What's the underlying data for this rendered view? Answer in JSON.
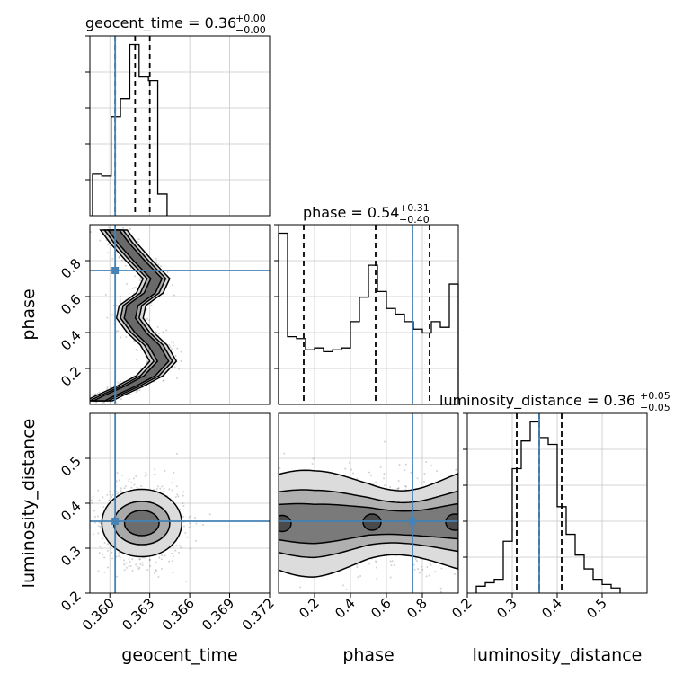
{
  "chart_data": {
    "type": "corner",
    "parameters": [
      "geocent_time",
      "phase",
      "luminosity_distance"
    ],
    "truths": {
      "geocent_time": 0.3604,
      "phase": 0.745,
      "luminosity_distance": 0.36
    },
    "truth_color": "#4682b4",
    "grid": true,
    "diagonal": [
      {
        "name": "geocent_time",
        "title": "geocent_time = 0.36",
        "title_upper": "+0.00",
        "title_lower": "−0.00",
        "quantiles": [
          0.3604,
          0.3619,
          0.363
        ],
        "xlim": [
          0.358,
          0.372
        ],
        "bins_x": [
          0.3587,
          0.3594,
          0.3601,
          0.3608,
          0.3615,
          0.3622,
          0.3629,
          0.3636,
          0.3643
        ],
        "counts": [
          0.23,
          0.22,
          0.55,
          0.65,
          0.95,
          0.77,
          0.75,
          0.12
        ]
      },
      {
        "name": "phase",
        "title": "phase = 0.54",
        "title_upper": "+0.31",
        "title_lower": "−0.40",
        "quantiles": [
          0.14,
          0.54,
          0.84
        ],
        "xlim": [
          0.0,
          1.0
        ],
        "bins_x": [
          0.0,
          0.05,
          0.1,
          0.15,
          0.2,
          0.25,
          0.3,
          0.35,
          0.4,
          0.45,
          0.5,
          0.55,
          0.6,
          0.65,
          0.7,
          0.75,
          0.8,
          0.85,
          0.9,
          0.95,
          1.0
        ],
        "counts": [
          0.91,
          0.36,
          0.35,
          0.29,
          0.3,
          0.28,
          0.29,
          0.3,
          0.44,
          0.57,
          0.74,
          0.6,
          0.51,
          0.48,
          0.44,
          0.4,
          0.38,
          0.44,
          0.41,
          0.64
        ]
      },
      {
        "name": "luminosity_distance",
        "title": "luminosity_distance = 0.36",
        "title_upper": "+0.05",
        "title_lower": "−0.05",
        "quantiles": [
          0.31,
          0.36,
          0.41
        ],
        "xlim": [
          0.2,
          0.6
        ],
        "bins_x": [
          0.22,
          0.24,
          0.26,
          0.28,
          0.3,
          0.32,
          0.34,
          0.36,
          0.38,
          0.4,
          0.42,
          0.44,
          0.46,
          0.48,
          0.5,
          0.52,
          0.54
        ],
        "counts": [
          0.04,
          0.06,
          0.08,
          0.3,
          0.72,
          0.88,
          0.99,
          0.9,
          0.86,
          0.5,
          0.34,
          0.22,
          0.14,
          0.08,
          0.05,
          0.03
        ]
      }
    ],
    "axes": {
      "geocent_time": {
        "label": "geocent_time",
        "ticks": [
          "0.360",
          "0.363",
          "0.366",
          "0.369",
          "0.372"
        ],
        "tick_values": [
          0.36,
          0.363,
          0.366,
          0.369,
          0.372
        ],
        "range": [
          0.3585,
          0.372
        ]
      },
      "phase": {
        "label": "phase",
        "ticks": [
          "0.2",
          "0.4",
          "0.6",
          "0.8"
        ],
        "tick_values": [
          0.2,
          0.4,
          0.6,
          0.8
        ],
        "range": [
          0.0,
          1.0
        ]
      },
      "luminosity_distance": {
        "label": "luminosity_distance",
        "ticks": [
          "0.2",
          "0.3",
          "0.4",
          "0.5"
        ],
        "tick_values": [
          0.2,
          0.3,
          0.4,
          0.5
        ],
        "range": [
          0.2,
          0.6
        ]
      }
    },
    "contours": {
      "phase_vs_geocent_time": {
        "ridge": [
          [
            0.3603,
            0.97
          ],
          [
            0.361,
            0.9
          ],
          [
            0.3622,
            0.8
          ],
          [
            0.3635,
            0.7
          ],
          [
            0.363,
            0.62
          ],
          [
            0.3617,
            0.55
          ],
          [
            0.3615,
            0.48
          ],
          [
            0.3623,
            0.4
          ],
          [
            0.3633,
            0.33
          ],
          [
            0.364,
            0.24
          ],
          [
            0.363,
            0.16
          ],
          [
            0.3615,
            0.1
          ],
          [
            0.36,
            0.05
          ],
          [
            0.3592,
            0.02
          ]
        ],
        "widths": [
          0.001,
          0.0007,
          0.00042
        ]
      },
      "luminosity_distance_vs_geocent_time": {
        "center": [
          0.3624,
          0.356
        ],
        "radii": [
          [
            0.003,
            0.075
          ],
          [
            0.0021,
            0.048
          ],
          [
            0.0013,
            0.028
          ]
        ]
      },
      "luminosity_distance_vs_phase": {
        "ridge_y": [
          0.358,
          0.356,
          0.354,
          0.356,
          0.358,
          0.36,
          0.358,
          0.356,
          0.356,
          0.358,
          0.36
        ],
        "half_widths": [
          0.095,
          0.06,
          0.035
        ],
        "blobs": [
          [
            0.02,
            0.355
          ],
          [
            0.52,
            0.358
          ],
          [
            0.98,
            0.358
          ]
        ]
      }
    }
  }
}
